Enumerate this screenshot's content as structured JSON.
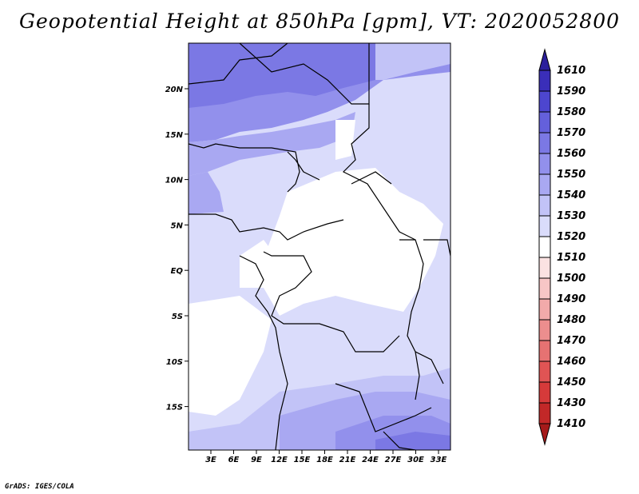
{
  "title": "Geopotential Height at 850hPa [gpm], VT: 2020052800",
  "footer": "GrADS: IGES/COLA",
  "map": {
    "projection": "latlon",
    "lon_labels": [
      "3E",
      "6E",
      "9E",
      "12E",
      "15E",
      "18E",
      "21E",
      "24E",
      "27E",
      "30E",
      "33E"
    ],
    "lat_labels": [
      "20N",
      "15N",
      "10N",
      "5N",
      "EQ",
      "5S",
      "10S",
      "15S"
    ],
    "lon_range": [
      0,
      35
    ],
    "lat_range": [
      -20,
      25
    ]
  },
  "colorbar": {
    "levels": [
      "1410",
      "1430",
      "1450",
      "1460",
      "1470",
      "1480",
      "1490",
      "1500",
      "1510",
      "1520",
      "1530",
      "1540",
      "1550",
      "1560",
      "1570",
      "1580",
      "1590",
      "1610"
    ],
    "colors": [
      "#a51a1a",
      "#c22828",
      "#d63a3a",
      "#e05454",
      "#e67272",
      "#ec8e8e",
      "#f2aaaa",
      "#f7c6c6",
      "#fbe2e2",
      "#ffffff",
      "#dadcfb",
      "#c2c3f7",
      "#a9a8f2",
      "#9290ec",
      "#7b78e4",
      "#6460db",
      "#4d46cf",
      "#3a2eb9",
      "#2b1f9c"
    ]
  }
}
